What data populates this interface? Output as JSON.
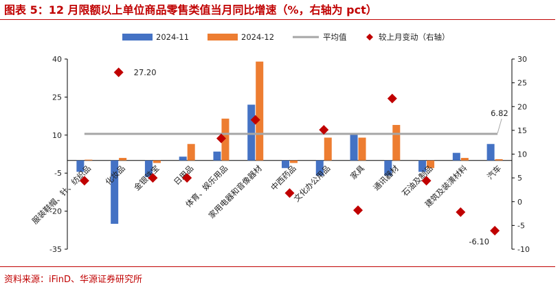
{
  "title": "图表 5：12 月限额以上单位商品零售类值当月同比增速（%，右轴为 pct）",
  "source": "资料来源：iFinD、华源证券研究所",
  "colors": {
    "accent": "#c00000",
    "series_2024_11": "#4472c4",
    "series_2024_12": "#ed7d31",
    "average": "#a6a6a6",
    "change": "#c00000"
  },
  "chart_data": {
    "type": "bar",
    "categories": [
      "服装鞋帽、针、纺织品",
      "化妆品",
      "金银珠宝",
      "日用品",
      "体育、娱乐用品",
      "家用电器和音像器材",
      "中西药品",
      "文化办公用品",
      "家具",
      "通讯器材",
      "石油及制品",
      "建筑及装潢材料",
      "汽车"
    ],
    "series": [
      {
        "name": "2024-11",
        "type": "bar",
        "axis": "left",
        "values": [
          -4.5,
          -25.0,
          -6.5,
          1.5,
          3.5,
          22.0,
          -3.0,
          -6.0,
          10.5,
          -6.0,
          -4.5,
          3.0,
          6.5
        ]
      },
      {
        "name": "2024-12",
        "type": "bar",
        "axis": "left",
        "values": [
          0.3,
          1.0,
          -1.0,
          6.5,
          16.5,
          39.0,
          -1.0,
          9.0,
          9.0,
          14.0,
          -3.0,
          1.0,
          0.5
        ]
      },
      {
        "name": "平均值",
        "type": "line",
        "axis": "left",
        "values": [
          10.5,
          10.5,
          10.5,
          10.5,
          10.5,
          10.5,
          10.5,
          10.5,
          10.5,
          10.5,
          10.5,
          10.5,
          10.5
        ]
      },
      {
        "name": "较上月变动（右轴）",
        "type": "scatter",
        "axis": "right",
        "values": [
          4.4,
          27.2,
          5.0,
          5.0,
          13.3,
          17.2,
          1.8,
          15.1,
          -1.8,
          21.7,
          4.4,
          -2.2,
          -6.1
        ]
      }
    ],
    "yticks_left": [
      40,
      25,
      10,
      -5,
      -20,
      -35
    ],
    "yticks_right": [
      30,
      25,
      20,
      15,
      10,
      5,
      0,
      -5,
      -10
    ],
    "ylim_left": [
      -35,
      40
    ],
    "ylim_right": [
      -10,
      30
    ],
    "annotations": [
      {
        "text": "27.20",
        "category_index": 1
      },
      {
        "text": "6.82",
        "category_index": 12
      },
      {
        "text": "-6.10",
        "category_index": 12
      }
    ],
    "legend": {
      "position": "top"
    },
    "grid": false
  }
}
